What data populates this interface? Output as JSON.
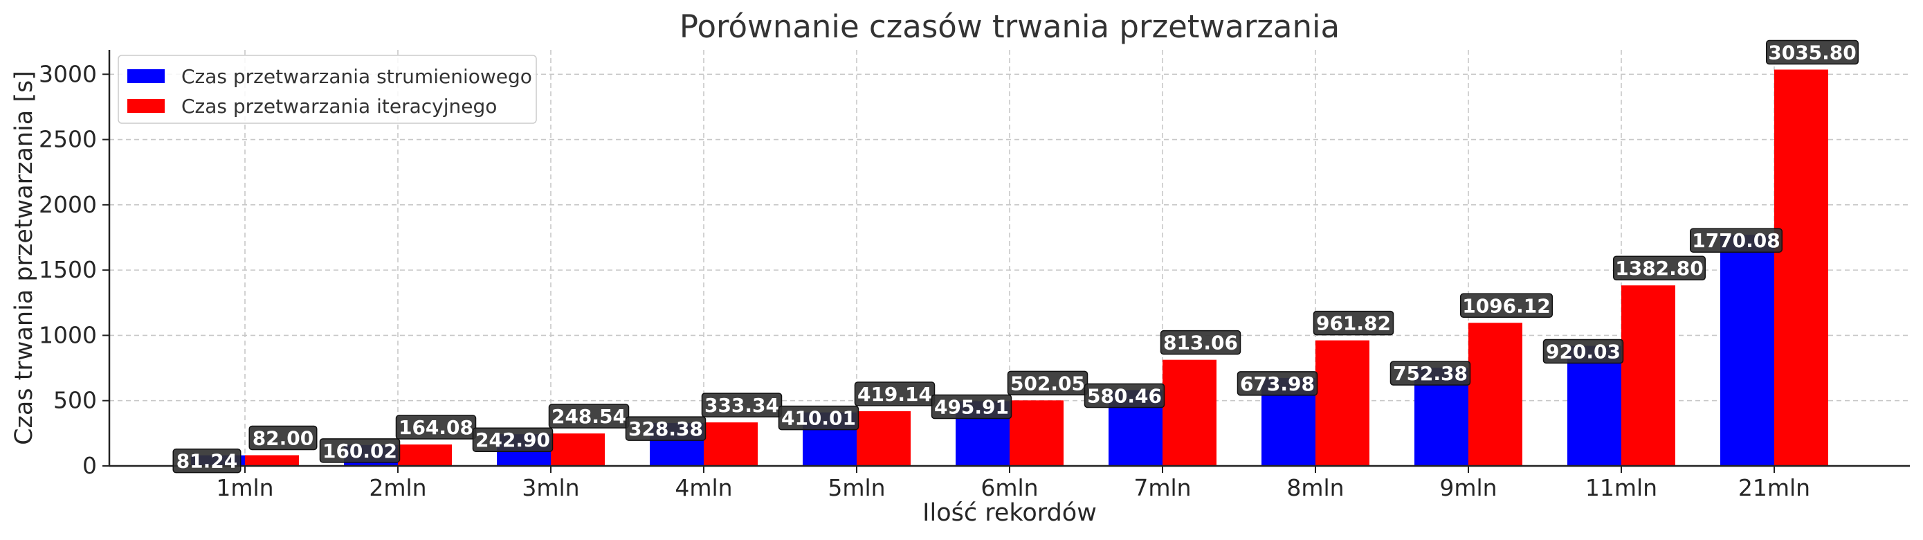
{
  "chart_data": {
    "type": "bar",
    "title": "Porównanie czasów trwania przetwarzania",
    "xlabel": "Ilość rekordów",
    "ylabel": "Czas trwania przetwarzania [s]",
    "categories": [
      "1mln",
      "2mln",
      "3mln",
      "4mln",
      "5mln",
      "6mln",
      "7mln",
      "8mln",
      "9mln",
      "11mln",
      "21mln"
    ],
    "series": [
      {
        "name": "Czas przetwarzania strumieniowego",
        "color": "#0000ff",
        "values": [
          81.24,
          160.02,
          242.9,
          328.38,
          410.01,
          495.91,
          580.46,
          673.98,
          752.38,
          920.03,
          1770.08
        ],
        "labels": [
          "81.24",
          "160.02",
          "242.90",
          "328.38",
          "410.01",
          "495.91",
          "580.46",
          "673.98",
          "752.38",
          "920.03",
          "1770.08"
        ]
      },
      {
        "name": "Czas przetwarzania iteracyjnego",
        "color": "#ff0000",
        "values": [
          82.0,
          164.08,
          248.54,
          333.34,
          419.14,
          502.05,
          813.06,
          961.82,
          1096.12,
          1382.8,
          3035.8
        ],
        "labels": [
          "82.00",
          "164.08",
          "248.54",
          "333.34",
          "419.14",
          "502.05",
          "813.06",
          "961.82",
          "1096.12",
          "1382.80",
          "3035.80"
        ]
      }
    ],
    "yticks": [
      0,
      500,
      1000,
      1500,
      2000,
      2500,
      3000
    ],
    "ylim": [
      0,
      3187
    ],
    "grid": true,
    "legend_position": "top-left"
  }
}
